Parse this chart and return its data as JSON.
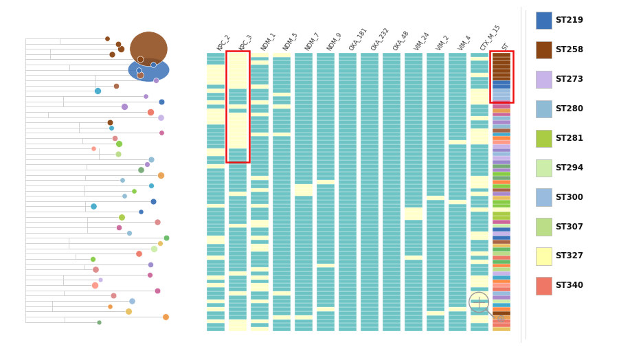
{
  "legend_entries": [
    {
      "label": "ST219",
      "color": "#3B72B8"
    },
    {
      "label": "ST258",
      "color": "#8B4513"
    },
    {
      "label": "ST273",
      "color": "#C8B4E8"
    },
    {
      "label": "ST280",
      "color": "#8FBCD4"
    },
    {
      "label": "ST281",
      "color": "#AACC44"
    },
    {
      "label": "ST294",
      "color": "#CCEEAA"
    },
    {
      "label": "ST300",
      "color": "#99BBDD"
    },
    {
      "label": "ST307",
      "color": "#BBDD88"
    },
    {
      "label": "ST327",
      "color": "#FFFFAA"
    },
    {
      "label": "ST340",
      "color": "#EE7766"
    }
  ],
  "columns": [
    "KPC_2",
    "KPC_3",
    "NDM_1",
    "NDM_5",
    "NDM_7",
    "NDM_9",
    "OXA_181",
    "OXA_232",
    "OXA_48",
    "VIM_24",
    "VIM_2",
    "VIM_4",
    "CTX_M_15",
    "ST"
  ],
  "n_rows": 70,
  "teal_color": "#6EC4C4",
  "yellow_color": "#FFFFCC",
  "background": "#FFFFFF",
  "red_box_color": "#EE1111",
  "st258_color": "#8B4513",
  "st219_color": "#3B72B8",
  "st300_color": "#99BBDD",
  "figsize": [
    9.36,
    5.08
  ],
  "tree_circle_colors": [
    "#AACC44",
    "#E8A050",
    "#DD8888",
    "#C8B4E8",
    "#FFFFAA",
    "#EE7766",
    "#99BBDD",
    "#8B4513",
    "#BBDD88",
    "#66BB66",
    "#E8C060",
    "#8FBCD4",
    "#FF9988",
    "#CCEEAA",
    "#9988CC",
    "#55AADD",
    "#EE9944",
    "#AA6644",
    "#77AA77",
    "#3B72B8",
    "#CC6699",
    "#44AACC",
    "#88CC44",
    "#FF8844",
    "#AA88CC"
  ]
}
